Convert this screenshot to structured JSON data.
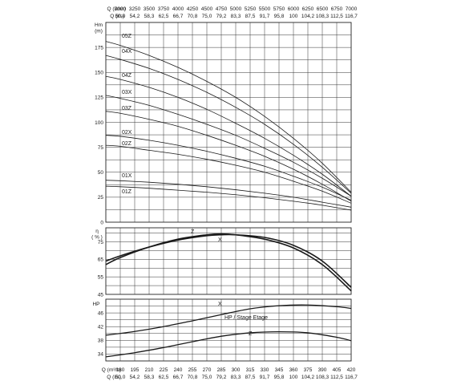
{
  "chart_data": [
    {
      "type": "line",
      "panel": "head",
      "ylabel": "Hm\n(m)",
      "ylim": [
        0,
        200
      ],
      "yticks": [
        0,
        25,
        50,
        75,
        100,
        125,
        150,
        175
      ],
      "xlim": [
        165,
        420
      ],
      "x_axis_unit": "m³/h",
      "series": [
        {
          "name": "05Z",
          "x": [
            165,
            180,
            210,
            240,
            270,
            300,
            330,
            360,
            390,
            420
          ],
          "y": [
            181,
            177,
            167,
            155,
            141,
            125,
            106,
            84,
            59,
            30
          ]
        },
        {
          "name": "04X",
          "x": [
            165,
            180,
            210,
            240,
            270,
            300,
            330,
            360,
            390,
            420
          ],
          "y": [
            167,
            163,
            154,
            143,
            130,
            115,
            98,
            78,
            55,
            29
          ]
        },
        {
          "name": "04Z",
          "x": [
            165,
            180,
            210,
            240,
            270,
            300,
            330,
            360,
            390,
            420
          ],
          "y": [
            146,
            143,
            135,
            125,
            113,
            99,
            84,
            67,
            48,
            26
          ]
        },
        {
          "name": "03X",
          "x": [
            165,
            180,
            210,
            240,
            270,
            300,
            330,
            360,
            390,
            420
          ],
          "y": [
            127,
            124,
            117,
            108,
            98,
            87,
            74,
            60,
            44,
            26
          ]
        },
        {
          "name": "03Z",
          "x": [
            165,
            180,
            210,
            240,
            270,
            300,
            330,
            360,
            390,
            420
          ],
          "y": [
            111,
            109,
            103,
            96,
            87,
            77,
            66,
            53,
            38,
            21
          ]
        },
        {
          "name": "02X",
          "x": [
            165,
            180,
            210,
            240,
            270,
            300,
            330,
            360,
            390,
            420
          ],
          "y": [
            87,
            86,
            82,
            77,
            71,
            64,
            56,
            46,
            35,
            22
          ]
        },
        {
          "name": "02Z",
          "x": [
            165,
            180,
            210,
            240,
            270,
            300,
            330,
            360,
            390,
            420
          ],
          "y": [
            77,
            76,
            72,
            68,
            63,
            57,
            50,
            41,
            31,
            19
          ]
        },
        {
          "name": "01X",
          "x": [
            165,
            180,
            210,
            240,
            270,
            300,
            330,
            360,
            390,
            420
          ],
          "y": [
            42,
            41.5,
            40,
            38,
            35.5,
            32.5,
            29,
            25,
            20,
            15
          ]
        },
        {
          "name": "01Z",
          "x": [
            165,
            180,
            210,
            240,
            270,
            300,
            330,
            360,
            390,
            420
          ],
          "y": [
            36,
            35.5,
            34,
            32,
            30,
            27.5,
            24.5,
            21,
            17,
            12
          ]
        }
      ]
    },
    {
      "type": "line",
      "panel": "efficiency",
      "ylabel": "η\n( % )",
      "ylim": [
        45,
        83
      ],
      "yticks": [
        45,
        55,
        65,
        75
      ],
      "xlim": [
        165,
        420
      ],
      "series": [
        {
          "name": "Z",
          "x": [
            165,
            180,
            210,
            240,
            270,
            285,
            300,
            330,
            360,
            390,
            420
          ],
          "y": [
            62,
            66,
            72,
            76.5,
            79,
            79.5,
            79,
            76.5,
            71.5,
            62,
            47
          ]
        },
        {
          "name": "X",
          "x": [
            165,
            180,
            210,
            240,
            270,
            285,
            300,
            330,
            360,
            390,
            420
          ],
          "y": [
            64,
            67,
            72,
            76,
            78.5,
            79,
            79,
            77.5,
            73,
            64,
            49
          ]
        }
      ]
    },
    {
      "type": "line",
      "panel": "power",
      "ylabel": "HP",
      "ylim": [
        32,
        50
      ],
      "yticks": [
        34,
        38,
        42,
        46
      ],
      "xlim": [
        165,
        420
      ],
      "annotation": "HP / Stage Etage",
      "series": [
        {
          "name": "X",
          "x": [
            165,
            195,
            225,
            255,
            285,
            315,
            345,
            375,
            405,
            420
          ],
          "y": [
            39.5,
            40.6,
            42,
            43.7,
            45.5,
            47.2,
            48.1,
            48.3,
            47.8,
            47.3
          ]
        },
        {
          "name": "Z",
          "x": [
            165,
            195,
            225,
            255,
            285,
            315,
            345,
            375,
            405,
            420
          ],
          "y": [
            33.2,
            34.4,
            35.9,
            37.6,
            39.2,
            40.2,
            40.5,
            40.2,
            38.9,
            37.9
          ]
        }
      ]
    }
  ],
  "axes": {
    "top_lmn": {
      "label": "Q (l/mn)",
      "values": [
        "3000",
        "3250",
        "3500",
        "3750",
        "4000",
        "4250",
        "4500",
        "4750",
        "5000",
        "5250",
        "5500",
        "5750",
        "6000",
        "6250",
        "6500",
        "6750",
        "7000"
      ]
    },
    "top_ls": {
      "label": "Q (l/s)",
      "values": [
        "50,0",
        "54,2",
        "58,3",
        "62,5",
        "66,7",
        "70,8",
        "75,0",
        "79,2",
        "83,3",
        "87,5",
        "91,7",
        "95,8",
        "100",
        "104,2",
        "108,3",
        "112,5",
        "116,7"
      ]
    },
    "bottom_m3h": {
      "label": "Q (m³/h)",
      "values": [
        "180",
        "195",
        "210",
        "225",
        "240",
        "255",
        "270",
        "285",
        "300",
        "315",
        "330",
        "345",
        "360",
        "375",
        "390",
        "405",
        "420"
      ]
    },
    "bottom_ls": {
      "label": "Q (l/s)",
      "values": [
        "50,0",
        "54,2",
        "58,3",
        "62,5",
        "66,7",
        "70,8",
        "75,0",
        "79,2",
        "83,3",
        "87,5",
        "91,7",
        "95,8",
        "100",
        "104,2",
        "108,3",
        "112,5",
        "116,7"
      ]
    }
  },
  "labels": {
    "head_tick_labels": [
      "0",
      "25",
      "50",
      "75",
      "100",
      "125",
      "150",
      "175"
    ],
    "eff_tick_labels": [
      "45",
      "55",
      "65",
      "75"
    ],
    "power_tick_labels": [
      "34",
      "38",
      "42",
      "46"
    ]
  }
}
